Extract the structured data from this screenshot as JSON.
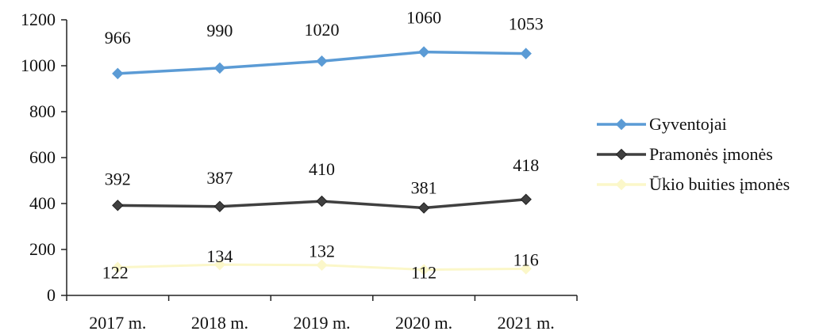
{
  "chart_data": {
    "type": "line",
    "categories": [
      "2017 m.",
      "2018 m.",
      "2019 m.",
      "2020 m.",
      "2021 m."
    ],
    "ylim": [
      0,
      1200
    ],
    "yticks": [
      0,
      200,
      400,
      600,
      800,
      1000,
      1200
    ],
    "grid": false,
    "legend_position": "right",
    "series": [
      {
        "name": "Gyventojai",
        "values": [
          966,
          990,
          1020,
          1060,
          1053
        ],
        "color": "#5b9bd5",
        "marker": "diamond"
      },
      {
        "name": "Pramonės įmonės",
        "values": [
          392,
          387,
          410,
          381,
          418
        ],
        "color": "#404040",
        "marker": "diamond"
      },
      {
        "name": "Ūkio buities įmonės",
        "values": [
          122,
          134,
          132,
          112,
          116
        ],
        "color": "#fbf7c9",
        "marker": "diamond"
      }
    ]
  }
}
